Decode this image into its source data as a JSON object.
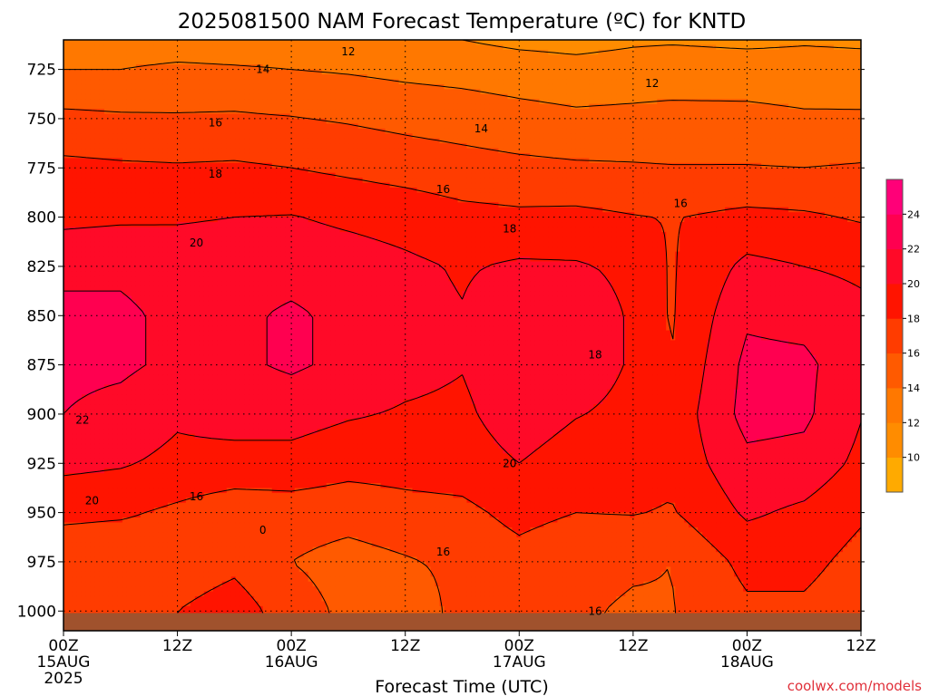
{
  "chart_data": {
    "type": "heatmap",
    "title": "2025081500 NAM Forecast Temperature (ºC) for KNTD",
    "xlabel": "Forecast Time (UTC)",
    "ylabel": "",
    "credit": "coolwx.com/models",
    "x_ticks": [
      {
        "hour": 0,
        "line1": "00Z",
        "line2": "15AUG",
        "line3": "2025"
      },
      {
        "hour": 12,
        "line1": "12Z",
        "line2": "",
        "line3": ""
      },
      {
        "hour": 24,
        "line1": "00Z",
        "line2": "16AUG",
        "line3": ""
      },
      {
        "hour": 36,
        "line1": "12Z",
        "line2": "",
        "line3": ""
      },
      {
        "hour": 48,
        "line1": "00Z",
        "line2": "17AUG",
        "line3": ""
      },
      {
        "hour": 60,
        "line1": "12Z",
        "line2": "",
        "line3": ""
      },
      {
        "hour": 72,
        "line1": "00Z",
        "line2": "18AUG",
        "line3": ""
      },
      {
        "hour": 84,
        "line1": "12Z",
        "line2": "",
        "line3": ""
      }
    ],
    "xlim": [
      0,
      84
    ],
    "y_ticks": [
      725,
      750,
      775,
      800,
      825,
      850,
      875,
      900,
      925,
      950,
      975,
      1000
    ],
    "ylim": [
      1010,
      710
    ],
    "colorbar": {
      "levels": [
        8,
        10,
        12,
        14,
        16,
        18,
        20,
        22,
        24,
        26
      ],
      "colors": [
        "#ffaa00",
        "#ff8c00",
        "#ff7800",
        "#ff5a00",
        "#ff3c00",
        "#ff1400",
        "#ff0a28",
        "#ff0050",
        "#ff0078"
      ],
      "labels": [
        "10",
        "12",
        "14",
        "16",
        "18",
        "20",
        "22",
        "24"
      ]
    },
    "pressure": [
      710,
      725,
      750,
      775,
      800,
      825,
      850,
      875,
      900,
      925,
      950,
      975,
      1000,
      1010
    ],
    "temperature_rows": [
      {
        "hour": 0,
        "temps": [
          12.5,
          14.0,
          16.5,
          18.5,
          19.5,
          21.5,
          22.5,
          22.5,
          22.0,
          20.5,
          18.5,
          16.5,
          17.0,
          17.0
        ]
      },
      {
        "hour": 6,
        "temps": [
          12.5,
          14.0,
          16.3,
          18.3,
          19.7,
          21.6,
          22.4,
          22.4,
          21.3,
          20.2,
          18.3,
          16.3,
          17.5,
          17.5
        ]
      },
      {
        "hour": 12,
        "temps": [
          12.5,
          14.5,
          16.2,
          18.2,
          19.8,
          21.1,
          21.5,
          21.5,
          20.3,
          19.5,
          17.6,
          16.8,
          18.0,
          18.0
        ]
      },
      {
        "hour": 18,
        "temps": [
          12.3,
          14.3,
          16.3,
          18.3,
          20.0,
          21.2,
          21.6,
          21.6,
          20.8,
          19.3,
          16.8,
          17.5,
          19.0,
          19.0
        ]
      },
      {
        "hour": 24,
        "temps": [
          12.2,
          14.0,
          16.1,
          18.0,
          20.1,
          21.3,
          22.3,
          22.3,
          20.8,
          19.3,
          17.0,
          16.0,
          17.0,
          17.0
        ]
      },
      {
        "hour": 30,
        "temps": [
          12.1,
          13.8,
          15.8,
          17.6,
          19.6,
          21.0,
          21.5,
          21.5,
          20.2,
          18.7,
          16.8,
          15.2,
          15.5,
          15.5
        ]
      },
      {
        "hour": 36,
        "temps": [
          12.1,
          13.5,
          15.4,
          17.2,
          19.2,
          20.4,
          20.6,
          20.6,
          19.8,
          18.8,
          17.3,
          15.8,
          14.5,
          14.5
        ]
      },
      {
        "hour": 42,
        "temps": [
          12.0,
          13.3,
          15.1,
          16.8,
          18.6,
          19.8,
          20.1,
          20.1,
          19.6,
          19.0,
          17.5,
          16.5,
          16.8,
          16.8
        ]
      },
      {
        "hour": 48,
        "temps": [
          11.5,
          13.0,
          14.7,
          16.5,
          18.4,
          20.3,
          21.3,
          21.5,
          21.1,
          20.0,
          18.6,
          17.3,
          16.9,
          16.9
        ]
      },
      {
        "hour": 54,
        "temps": [
          11.3,
          12.7,
          14.4,
          16.3,
          18.5,
          20.2,
          21.0,
          21.0,
          20.1,
          19.0,
          18.0,
          16.5,
          16.2,
          16.2
        ]
      },
      {
        "hour": 60,
        "temps": [
          11.7,
          12.9,
          14.5,
          16.2,
          18.1,
          19.6,
          19.8,
          19.8,
          19.5,
          19.2,
          18.1,
          16.2,
          15.8,
          15.8
        ]
      },
      {
        "hour": 64,
        "temps": [
          11.8,
          13.0,
          14.6,
          16.1,
          17.9,
          17.8,
          17.8,
          18.0,
          18.6,
          18.6,
          17.8,
          16.0,
          15.9,
          15.9
        ]
      },
      {
        "hour": 72,
        "temps": [
          11.6,
          12.9,
          14.6,
          16.1,
          18.5,
          20.5,
          21.7,
          22.5,
          22.7,
          21.5,
          20.3,
          18.6,
          17.6,
          17.6
        ]
      },
      {
        "hour": 78,
        "temps": [
          11.8,
          12.8,
          14.3,
          16.0,
          18.3,
          20.0,
          21.4,
          22.4,
          22.4,
          21.3,
          19.6,
          18.6,
          17.6,
          17.6
        ]
      },
      {
        "hour": 84,
        "temps": [
          11.7,
          12.7,
          14.3,
          16.2,
          17.8,
          19.6,
          20.5,
          20.8,
          20.1,
          19.5,
          18.3,
          17.3,
          16.6,
          16.6
        ]
      }
    ],
    "contour_labels": [
      {
        "text": "12",
        "hour": 30,
        "p": 716
      },
      {
        "text": "12",
        "hour": 62,
        "p": 732
      },
      {
        "text": "14",
        "hour": 21,
        "p": 725
      },
      {
        "text": "14",
        "hour": 44,
        "p": 755
      },
      {
        "text": "16",
        "hour": 16,
        "p": 752
      },
      {
        "text": "16",
        "hour": 40,
        "p": 786
      },
      {
        "text": "16",
        "hour": 65,
        "p": 793
      },
      {
        "text": "16",
        "hour": 14,
        "p": 942
      },
      {
        "text": "16",
        "hour": 40,
        "p": 970
      },
      {
        "text": "16",
        "hour": 56,
        "p": 1000
      },
      {
        "text": "18",
        "hour": 16,
        "p": 778
      },
      {
        "text": "18",
        "hour": 47,
        "p": 806
      },
      {
        "text": "18",
        "hour": 56,
        "p": 870
      },
      {
        "text": "20",
        "hour": 14,
        "p": 813
      },
      {
        "text": "20",
        "hour": 3,
        "p": 944
      },
      {
        "text": "20",
        "hour": 47,
        "p": 925
      },
      {
        "text": "22",
        "hour": 2,
        "p": 903
      },
      {
        "text": "0",
        "hour": 21,
        "p": 959
      }
    ],
    "terrain": {
      "p_ground": 1001
    }
  }
}
